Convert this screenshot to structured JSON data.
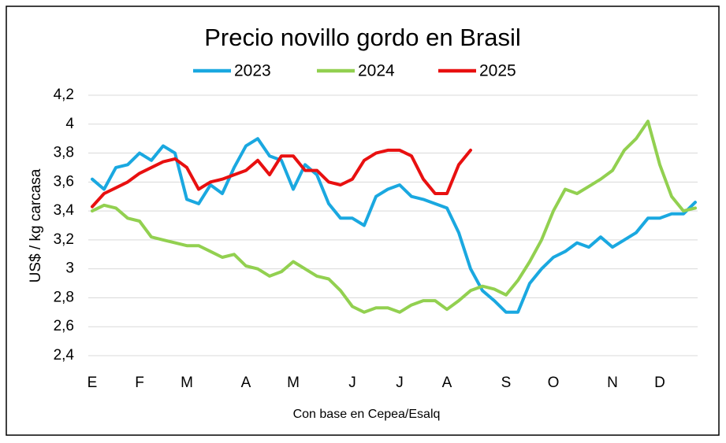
{
  "chart_data": {
    "type": "line",
    "title": "Precio novillo gordo en Brasil",
    "ylabel": "US$ / kg carcasa",
    "xlabel": "Con base en Cepea/Esalq",
    "categories": [
      "E",
      null,
      null,
      null,
      "F",
      null,
      null,
      null,
      "M",
      null,
      null,
      null,
      null,
      "A",
      null,
      null,
      null,
      "M",
      null,
      null,
      null,
      null,
      "J",
      null,
      null,
      null,
      "J",
      null,
      null,
      null,
      "A",
      null,
      null,
      null,
      null,
      "S",
      null,
      null,
      null,
      "O",
      null,
      null,
      null,
      null,
      "N",
      null,
      null,
      null,
      "D",
      null,
      null,
      null
    ],
    "series": [
      {
        "name": "2023",
        "color": "#1aa8e0",
        "values": [
          3.62,
          3.55,
          3.7,
          3.72,
          3.8,
          3.75,
          3.85,
          3.8,
          3.48,
          3.45,
          3.58,
          3.52,
          3.7,
          3.85,
          3.9,
          3.78,
          3.75,
          3.55,
          3.72,
          3.65,
          3.45,
          3.35,
          3.35,
          3.3,
          3.5,
          3.55,
          3.58,
          3.5,
          3.48,
          3.45,
          3.42,
          3.25,
          3.0,
          2.85,
          2.78,
          2.7,
          2.7,
          2.9,
          3.0,
          3.08,
          3.12,
          3.18,
          3.15,
          3.22,
          3.15,
          3.2,
          3.25,
          3.35,
          3.35,
          3.38,
          3.38,
          3.46
        ]
      },
      {
        "name": "2024",
        "color": "#92d050",
        "values": [
          3.4,
          3.44,
          3.42,
          3.35,
          3.33,
          3.22,
          3.2,
          3.18,
          3.16,
          3.16,
          3.12,
          3.08,
          3.1,
          3.02,
          3.0,
          2.95,
          2.98,
          3.05,
          3.0,
          2.95,
          2.93,
          2.85,
          2.74,
          2.7,
          2.73,
          2.73,
          2.7,
          2.75,
          2.78,
          2.78,
          2.72,
          2.78,
          2.85,
          2.88,
          2.86,
          2.82,
          2.92,
          3.05,
          3.2,
          3.4,
          3.55,
          3.52,
          3.57,
          3.62,
          3.68,
          3.82,
          3.9,
          4.02,
          3.72,
          3.5,
          3.4,
          3.42
        ]
      },
      {
        "name": "2025",
        "color": "#e81010",
        "values": [
          3.43,
          3.52,
          3.56,
          3.6,
          3.66,
          3.7,
          3.74,
          3.76,
          3.7,
          3.55,
          3.6,
          3.62,
          3.65,
          3.68,
          3.75,
          3.65,
          3.78,
          3.78,
          3.68,
          3.68,
          3.6,
          3.58,
          3.62,
          3.75,
          3.8,
          3.82,
          3.82,
          3.78,
          3.62,
          3.52,
          3.52,
          3.72,
          3.82,
          null,
          null,
          null,
          null,
          null,
          null,
          null,
          null,
          null,
          null,
          null,
          null,
          null,
          null,
          null,
          null,
          null,
          null,
          null
        ]
      }
    ],
    "ylim": [
      2.4,
      4.2
    ],
    "yticks": [
      {
        "value": 2.4,
        "label": "2,4"
      },
      {
        "value": 2.6,
        "label": "2,6"
      },
      {
        "value": 2.8,
        "label": "2,8"
      },
      3,
      {
        "value": 3.2,
        "label": "3,2"
      },
      {
        "value": 3.4,
        "label": "3,4"
      },
      {
        "value": 3.6,
        "label": "3,6"
      },
      {
        "value": 3.8,
        "label": "3,8"
      },
      4,
      {
        "value": 4.2,
        "label": "4,2"
      }
    ],
    "grid": true,
    "legend": "top"
  }
}
